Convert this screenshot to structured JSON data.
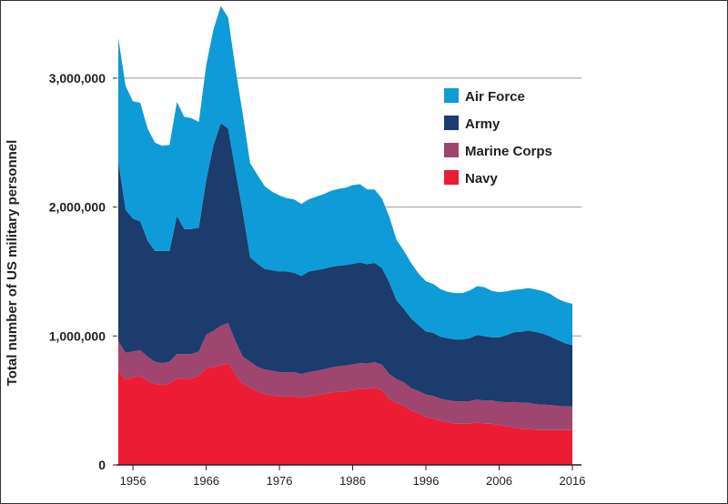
{
  "chart_data": {
    "type": "area",
    "stacked": true,
    "title": "",
    "xlabel": "",
    "ylabel": "Total number of US military personnel",
    "xlim": [
      1953,
      2017
    ],
    "ylim": [
      0,
      3550000
    ],
    "xticks": [
      1956,
      1966,
      1976,
      1986,
      1996,
      2006,
      2016
    ],
    "yticks": [
      0,
      1000000,
      2000000,
      3000000
    ],
    "ytick_labels": [
      "0",
      "1,000,000",
      "2,000,000",
      "3,000,000"
    ],
    "grid": "horizontal",
    "legend_position": "top-right",
    "x": [
      1954,
      1955,
      1956,
      1957,
      1958,
      1959,
      1960,
      1961,
      1962,
      1963,
      1964,
      1965,
      1966,
      1967,
      1968,
      1969,
      1970,
      1971,
      1972,
      1973,
      1974,
      1975,
      1976,
      1977,
      1978,
      1979,
      1980,
      1981,
      1982,
      1983,
      1984,
      1985,
      1986,
      1987,
      1988,
      1989,
      1990,
      1991,
      1992,
      1993,
      1994,
      1995,
      1996,
      1997,
      1998,
      1999,
      2000,
      2001,
      2002,
      2003,
      2004,
      2005,
      2006,
      2007,
      2008,
      2009,
      2010,
      2011,
      2012,
      2013,
      2014,
      2015,
      2016
    ],
    "series": [
      {
        "name": "Navy",
        "color": "#ec1c34",
        "values": [
          730000,
          660000,
          680000,
          690000,
          650000,
          630000,
          620000,
          630000,
          670000,
          670000,
          670000,
          690000,
          750000,
          760000,
          770000,
          790000,
          700000,
          630000,
          600000,
          570000,
          550000,
          540000,
          530000,
          530000,
          530000,
          520000,
          530000,
          540000,
          550000,
          560000,
          570000,
          570000,
          580000,
          590000,
          590000,
          600000,
          580000,
          510000,
          480000,
          460000,
          420000,
          400000,
          370000,
          360000,
          340000,
          330000,
          320000,
          320000,
          320000,
          330000,
          320000,
          320000,
          310000,
          300000,
          290000,
          280000,
          280000,
          270000,
          270000,
          270000,
          270000,
          270000,
          270000
        ]
      },
      {
        "name": "Marine Corps",
        "color": "#9e4670",
        "values": [
          230000,
          210000,
          200000,
          200000,
          190000,
          170000,
          170000,
          170000,
          190000,
          190000,
          190000,
          190000,
          260000,
          280000,
          310000,
          310000,
          260000,
          210000,
          200000,
          190000,
          190000,
          190000,
          190000,
          190000,
          190000,
          185000,
          190000,
          190000,
          190000,
          195000,
          195000,
          200000,
          200000,
          200000,
          197000,
          197000,
          197000,
          195000,
          185000,
          180000,
          175000,
          174000,
          175000,
          174000,
          173000,
          172000,
          173000,
          173000,
          174000,
          177000,
          178000,
          180000,
          180000,
          186000,
          198000,
          203000,
          202000,
          201000,
          198000,
          195000,
          188000,
          184000,
          184000
        ]
      },
      {
        "name": "Army",
        "color": "#1b3c6d",
        "values": [
          1400000,
          1110000,
          1030000,
          1000000,
          900000,
          860000,
          870000,
          860000,
          1070000,
          970000,
          970000,
          960000,
          1200000,
          1440000,
          1570000,
          1510000,
          1320000,
          1120000,
          810000,
          800000,
          780000,
          780000,
          780000,
          780000,
          770000,
          760000,
          780000,
          780000,
          780000,
          780000,
          780000,
          780000,
          780000,
          780000,
          770000,
          770000,
          750000,
          710000,
          610000,
          570000,
          540000,
          510000,
          490000,
          490000,
          480000,
          480000,
          480000,
          480000,
          490000,
          500000,
          500000,
          490000,
          500000,
          520000,
          540000,
          550000,
          560000,
          560000,
          550000,
          530000,
          510000,
          490000,
          475000
        ]
      },
      {
        "name": "Air Force",
        "color": "#0f9bd7",
        "values": [
          950000,
          960000,
          910000,
          920000,
          870000,
          840000,
          815000,
          822000,
          885000,
          870000,
          860000,
          820000,
          890000,
          900000,
          910000,
          860000,
          790000,
          760000,
          730000,
          690000,
          640000,
          610000,
          590000,
          570000,
          570000,
          560000,
          560000,
          570000,
          580000,
          590000,
          595000,
          600000,
          610000,
          607000,
          580000,
          570000,
          540000,
          510000,
          470000,
          450000,
          430000,
          400000,
          390000,
          380000,
          370000,
          360000,
          360000,
          360000,
          370000,
          380000,
          380000,
          360000,
          350000,
          340000,
          330000,
          330000,
          330000,
          330000,
          330000,
          330000,
          320000,
          320000,
          320000
        ]
      }
    ]
  },
  "legend": {
    "items": [
      {
        "label": "Air Force",
        "color": "#0f9bd7"
      },
      {
        "label": "Army",
        "color": "#1b3c6d"
      },
      {
        "label": "Marine Corps",
        "color": "#9e4670"
      },
      {
        "label": "Navy",
        "color": "#ec1c34"
      }
    ]
  },
  "colors": {
    "gridline": "#9a9a9a",
    "axis": "#231f20",
    "text": "#231f20"
  }
}
